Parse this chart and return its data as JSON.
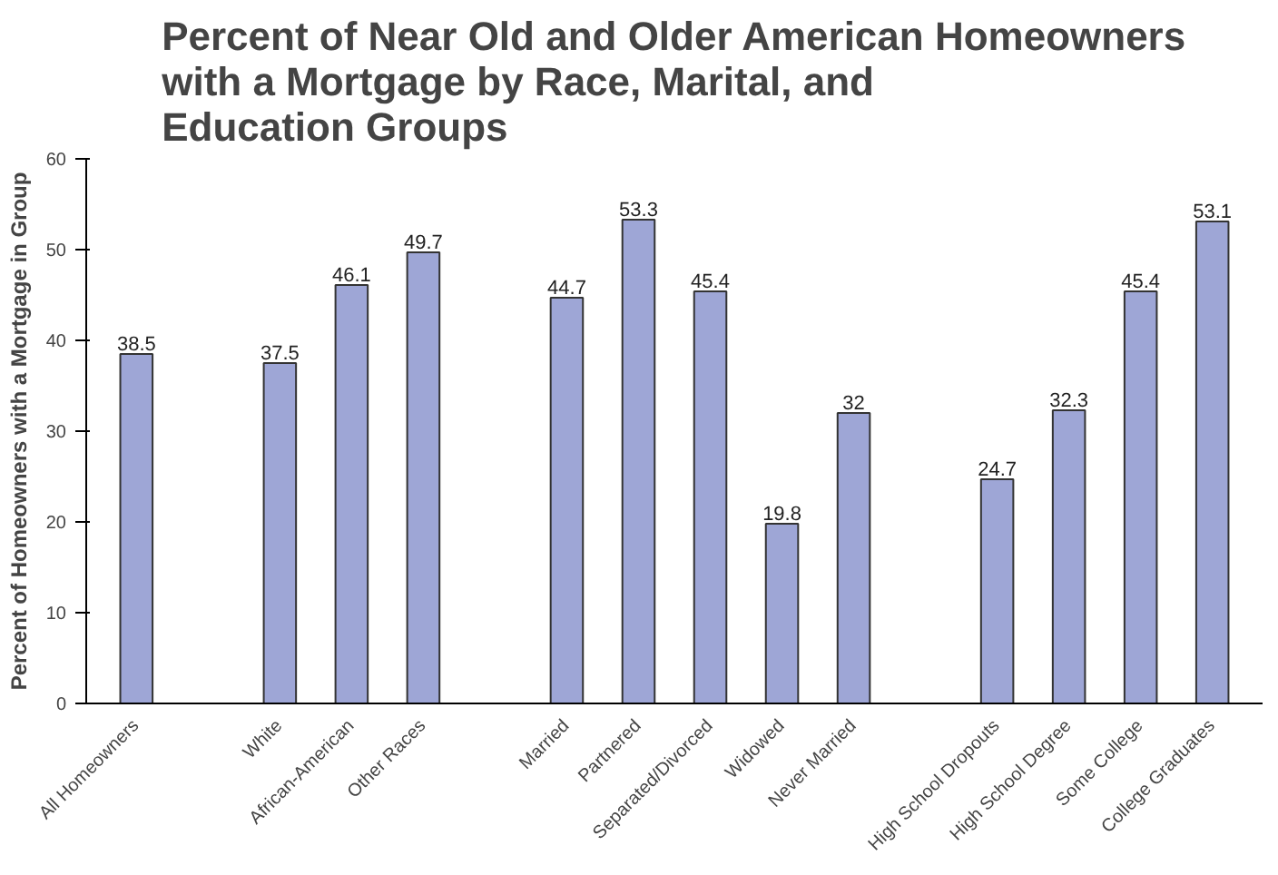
{
  "chart_data": {
    "type": "bar",
    "title": "Percent of Near Old and Older American Homeowners\nwith a Mortgage by Race, Marital, and\nEducation Groups",
    "ylabel": "Percent of Homeowners with a Mortgage in Group",
    "categories": [
      "All Homeowners",
      null,
      "White",
      "African-American",
      "Other Races",
      null,
      "Married",
      "Partnered",
      "Separated/Divorced",
      "Widowed",
      "Never Married",
      null,
      "High School Dropouts",
      "High School Degree",
      "Some College",
      "College Graduates"
    ],
    "values": [
      38.5,
      null,
      37.5,
      46.1,
      49.7,
      null,
      44.7,
      53.3,
      45.4,
      19.8,
      32,
      null,
      24.7,
      32.3,
      45.4,
      53.1
    ],
    "color": "#9ea6d6",
    "ylim": [
      0,
      60
    ],
    "yticks": [
      0,
      10,
      20,
      30,
      40,
      50,
      60
    ],
    "data_labels": true,
    "grid": false
  }
}
